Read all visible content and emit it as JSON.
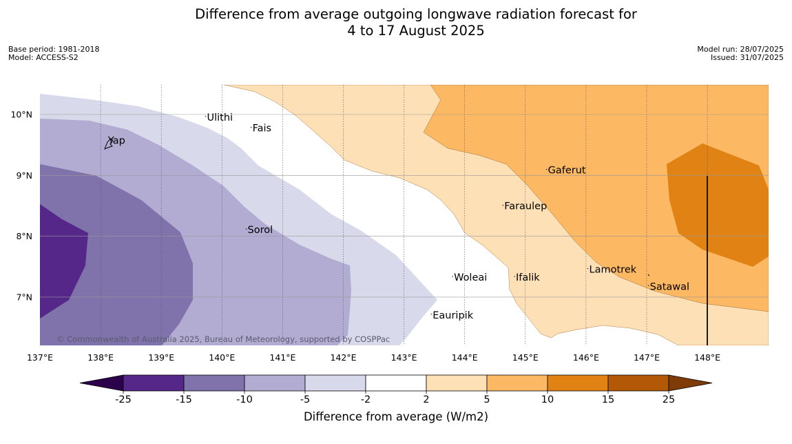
{
  "header": {
    "title_line1": "Difference from average outgoing longwave radiation forecast for",
    "title_line2": "4 to 17 August 2025",
    "base_period": "Base period: 1981-2018",
    "model": "Model: ACCESS-S2",
    "model_run": "Model run: 28/07/2025",
    "issued": "Issued: 31/07/2025"
  },
  "map": {
    "copyright": "© Commonwealth of Australia 2025, Bureau of Meteorology, supported by COSPPac",
    "lon_ticks": [
      "137°E",
      "138°E",
      "139°E",
      "140°E",
      "141°E",
      "142°E",
      "143°E",
      "144°E",
      "145°E",
      "146°E",
      "147°E",
      "148°E"
    ],
    "lat_ticks": [
      "10°N",
      "9°N",
      "8°N",
      "7°N"
    ],
    "places": [
      {
        "name": "Yap",
        "lon": 138.1,
        "lat": 9.52
      },
      {
        "name": "Ulithi",
        "lon": 139.73,
        "lat": 9.9
      },
      {
        "name": "Fais",
        "lon": 140.48,
        "lat": 9.72
      },
      {
        "name": "Gaferut",
        "lon": 145.35,
        "lat": 9.03
      },
      {
        "name": "Faraulep",
        "lon": 144.63,
        "lat": 8.44
      },
      {
        "name": "Sorol",
        "lon": 140.4,
        "lat": 8.05
      },
      {
        "name": "Woleai",
        "lon": 143.8,
        "lat": 7.27
      },
      {
        "name": "Ifalik",
        "lon": 144.82,
        "lat": 7.27
      },
      {
        "name": "Lamotrek",
        "lon": 146.03,
        "lat": 7.4
      },
      {
        "name": "Satawal",
        "lon": 147.03,
        "lat": 7.12
      },
      {
        "name": "Eauripik",
        "lon": 143.45,
        "lat": 6.65
      }
    ]
  },
  "colorbar": {
    "label": "Difference from average (W/m2)",
    "ticks": [
      "-25",
      "-15",
      "-10",
      "-5",
      "-2",
      "2",
      "5",
      "10",
      "15",
      "25"
    ],
    "colors": {
      "lt_-25": "#2d004b",
      "-25_-15": "#542788",
      "-15_-10": "#8073ac",
      "-10_-5": "#b2abd2",
      "-5_-2": "#d8daeb",
      "-2_2": "#ffffff",
      "2_5": "#fee0b6",
      "5_10": "#fdb863",
      "10_15": "#e08214",
      "15_25": "#b35806",
      "gt_25": "#7f3b08"
    }
  }
}
